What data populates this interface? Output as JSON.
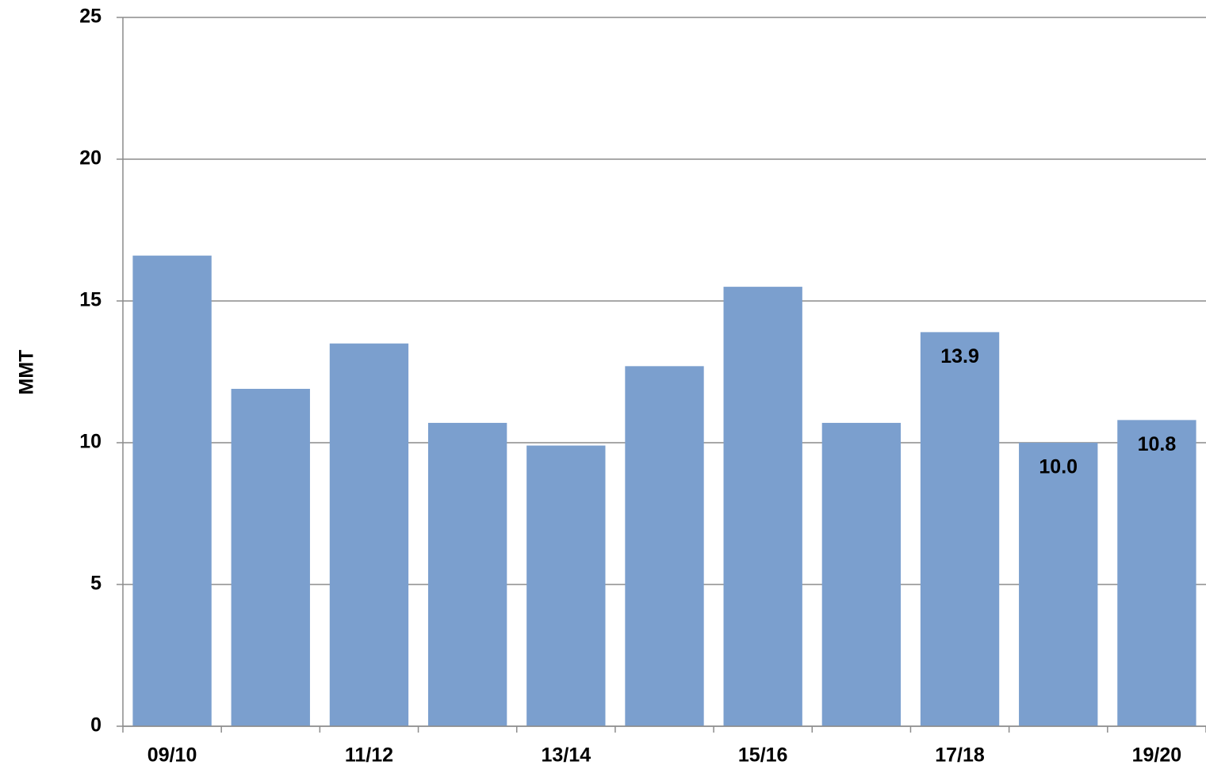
{
  "chart_data": {
    "type": "bar",
    "y_label": "MMT",
    "categories": [
      "09/10",
      null,
      "11/12",
      null,
      "13/14",
      null,
      "15/16",
      null,
      "17/18",
      null,
      "19/20"
    ],
    "values": [
      16.6,
      11.9,
      13.5,
      10.7,
      9.9,
      12.7,
      15.5,
      10.7,
      13.9,
      10.0,
      10.8
    ],
    "value_labels": [
      null,
      null,
      null,
      null,
      null,
      null,
      null,
      null,
      "13.9",
      "10.0",
      "10.8"
    ],
    "color": "#7b9fce",
    "ylim": [
      0,
      25
    ],
    "yticks": [
      0,
      5,
      10,
      15,
      20,
      25
    ],
    "grid": true
  }
}
